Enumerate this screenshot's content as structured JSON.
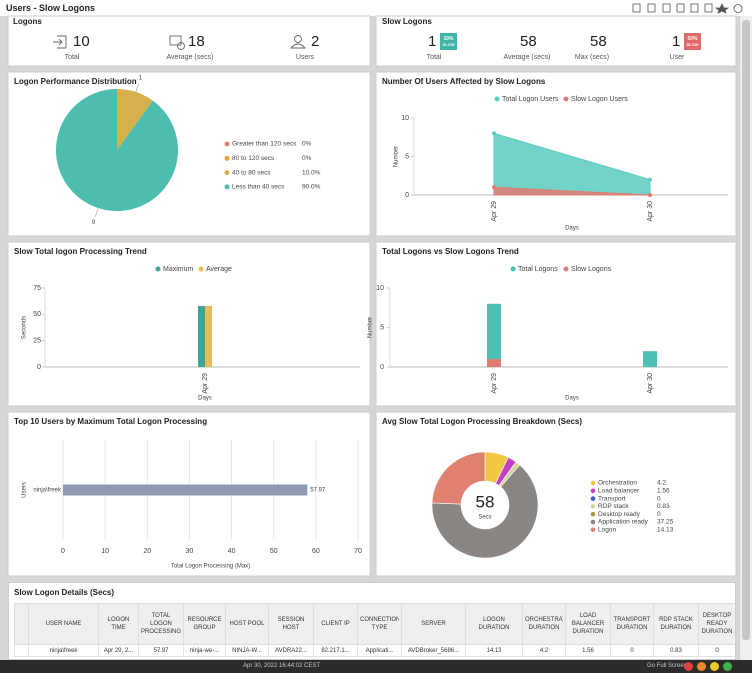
{
  "header": {
    "title": "Users - Slow Logons"
  },
  "logons": {
    "title": "Logons",
    "kpis": [
      {
        "value": 10,
        "label": "Total"
      },
      {
        "value": 18,
        "label": "Average (secs)"
      },
      {
        "value": 2,
        "label": "Users"
      }
    ]
  },
  "slow_logons": {
    "title": "Slow Logons",
    "kpis": [
      {
        "value": 1,
        "label": "Total",
        "badge": "10%",
        "badge_note": "SLOW"
      },
      {
        "value": 58,
        "label": "Average (secs)"
      },
      {
        "value": 58,
        "label": "Max (secs)"
      },
      {
        "value": 1,
        "label": "User",
        "badge": "50%",
        "badge_note": "SLOW"
      }
    ]
  },
  "chart_data": [
    {
      "type": "pie",
      "title": "Logon Performance Distribution",
      "categories": [
        "Greater than 120 secs",
        "80 to 120 secs",
        "40 to 80 secs",
        "Less than 40 secs"
      ],
      "values": [
        0,
        0,
        1,
        9
      ],
      "colors": [
        "#e0826a",
        "#e8a03c",
        "#d6b04c",
        "#4dbdb0"
      ],
      "percentages": [
        0,
        0,
        10,
        90
      ],
      "percentage_labels": [
        "0%",
        "0%",
        "10.0%",
        "90.0%"
      ]
    },
    {
      "type": "area",
      "title": "Number Of Users Affected by Slow Logons",
      "categories": [
        "Apr 29",
        "Apr 30"
      ],
      "series": [
        {
          "name": "Total Logon Users",
          "color": "#5ccbbf",
          "values": [
            8,
            2
          ]
        },
        {
          "name": "Slow Logon Users",
          "color": "#e07b72",
          "values": [
            1,
            0
          ]
        }
      ],
      "ylim": [
        0,
        10
      ],
      "yticks": [
        0,
        5,
        10
      ],
      "y_label": "Number",
      "x_label": "Days"
    },
    {
      "type": "bar",
      "title": "Slow Total logon Processing Trend",
      "categories": [
        "Apr 29"
      ],
      "series": [
        {
          "name": "Maximum",
          "color": "#3fa396",
          "values": [
            57.97
          ]
        },
        {
          "name": "Average",
          "color": "#e5bd5a",
          "values": [
            57.97
          ]
        }
      ],
      "ylim": [
        0,
        75
      ],
      "yticks": [
        0,
        25,
        50,
        75
      ],
      "y_label": "Seconds",
      "x_label": "Days"
    },
    {
      "type": "overlap_bar",
      "title": "Total Logons vs Slow Logons Trend",
      "categories": [
        "Apr 29",
        "Apr 30"
      ],
      "series": [
        {
          "name": "Total Logons",
          "color": "#4dbfb3",
          "values": [
            8,
            2
          ]
        },
        {
          "name": "Slow Logons",
          "color": "#e07b72",
          "values": [
            1,
            0
          ]
        }
      ],
      "ylim": [
        0,
        10
      ],
      "yticks": [
        0,
        5,
        10
      ],
      "y_label": "Number",
      "x_label": "Days"
    },
    {
      "type": "hbar",
      "title": "Top 10 Users by Maximum Total Logon Processing",
      "categories": [
        "ninja\\freek"
      ],
      "values": [
        57.97
      ],
      "color": "#8e9ab3",
      "xlim": [
        0,
        70
      ],
      "xticks": [
        0,
        10,
        20,
        30,
        40,
        50,
        60,
        70
      ],
      "x_label": "Total Logon Processing (Max)",
      "y_label": "Users"
    },
    {
      "type": "donut",
      "title": "Avg Slow Total Logon Processing Breakdown (Secs)",
      "categories": [
        "Orchestration",
        "Load balancer",
        "Transport",
        "RDP stack",
        "Desktop ready",
        "Application ready",
        "Logon"
      ],
      "values": [
        4.2,
        1.56,
        0,
        0.83,
        0,
        37.25,
        14.13
      ],
      "colors": [
        "#f2c744",
        "#c23fc2",
        "#3f5fbf",
        "#d4d39c",
        "#9e9e3a",
        "#8c8682",
        "#e08070"
      ],
      "center_value": 58,
      "center_label": "Secs"
    }
  ],
  "table": {
    "title": "Slow Logon Details (Secs)",
    "columns": [
      "USER NAME",
      "LOGON TIME",
      "TOTAL LOGON PROCESSING",
      "RESOURCE GROUP",
      "HOST POOL",
      "SESSION HOST",
      "CLIENT IP",
      "CONNECTION TYPE",
      "SERVER",
      "LOGON DURATION",
      "ORCHESTRATION DURATION",
      "LOAD BALANCER DURATION",
      "TRANSPORT DURATION",
      "RDP STACK DURATION",
      "DESKTOP READY DURATION"
    ],
    "rows": [
      [
        "ninja\\freek",
        "Apr 29, 2...",
        "57.97",
        "ninja-we-...",
        "NINJA-W...",
        "AVDRA22...",
        "82.217.1...",
        "Applicati...",
        "AVDBroker_5686...",
        "14.13",
        "4.2",
        "1.56",
        "0",
        "0.83",
        "0"
      ]
    ]
  },
  "footer": {
    "timestamp": "Apr 30, 2022 16:44:02 CEST",
    "button": "Go Full Screen"
  }
}
